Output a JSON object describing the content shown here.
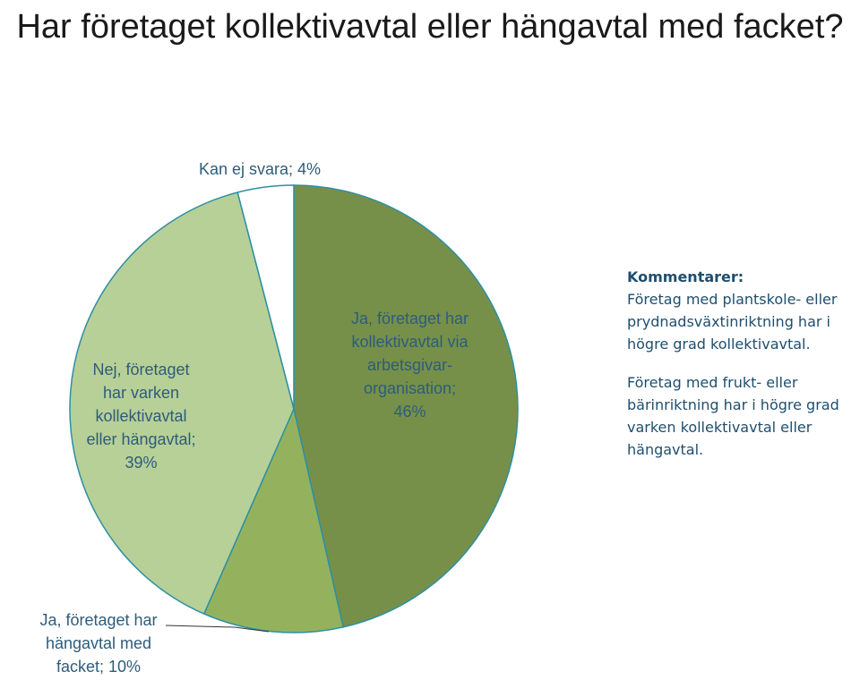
{
  "chart_data": {
    "type": "pie",
    "title": "Har företaget kollektivavtal eller hängavtal med facket?",
    "slices": [
      {
        "label": "Ja, företaget har kollektivavtal via arbetsgivar-organisation",
        "value": 46,
        "display": "Ja, företaget har\nkollektivavtal via\narbetsgivar-\norganisation;\n46%",
        "color": "#76904a"
      },
      {
        "label": "Ja, företaget har hängavtal med facket",
        "value": 10,
        "display": "Ja, företaget har\nhängavtal med\nfacket; 10%",
        "color": "#94b25e"
      },
      {
        "label": "Nej, företaget har varken kollektivavtal eller hängavtal",
        "value": 39,
        "display": "Nej, företaget\nhar varken\nkollektivavtal\neller hängavtal;\n39%",
        "color": "#b7d097"
      },
      {
        "label": "Kan ej svara",
        "value": 4,
        "display": "Kan ej svara; 4%",
        "color": "#ffffff"
      }
    ],
    "slice_border_color": "#2d8fa3",
    "label_color": "#2e5c7a",
    "legend": "none"
  },
  "comments": {
    "header": "Kommentarer:",
    "paragraphs": [
      "Företag med plantskole- eller\nprydnadsväxtinriktning har i\nhögre grad kollektivavtal.",
      "Företag med frukt- eller\nbärinriktning har i högre grad\nvarken kollektivavtal eller\nhängavtal."
    ]
  }
}
